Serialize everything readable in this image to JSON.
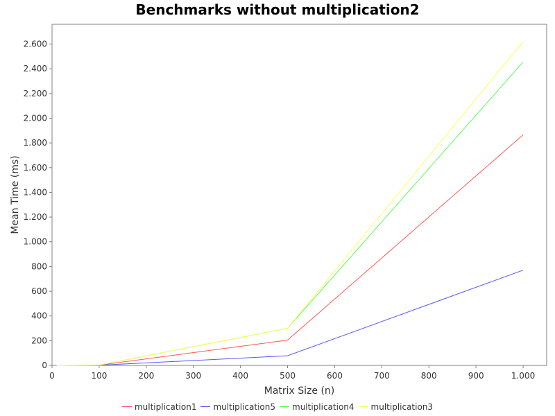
{
  "chart_data": {
    "type": "line",
    "title": "Benchmarks without multiplication2",
    "xlabel": "Matrix Size (n)",
    "ylabel": "Mean Time (ms)",
    "x": [
      10,
      100,
      500,
      1000
    ],
    "xlim": [
      0,
      1050
    ],
    "ylim": [
      0,
      2760
    ],
    "xticks": [
      0,
      100,
      200,
      300,
      400,
      500,
      600,
      700,
      800,
      900,
      1000
    ],
    "xtick_labels": [
      "0",
      "100",
      "200",
      "300",
      "400",
      "500",
      "600",
      "700",
      "800",
      "900",
      "1.000"
    ],
    "yticks": [
      0,
      200,
      400,
      600,
      800,
      1000,
      1200,
      1400,
      1600,
      1800,
      2000,
      2200,
      2400,
      2600
    ],
    "ytick_labels": [
      "0",
      "200",
      "400",
      "600",
      "800",
      "1.000",
      "1.200",
      "1.400",
      "1.600",
      "1.800",
      "2.000",
      "2.200",
      "2.400",
      "2.600"
    ],
    "grid": false,
    "legend_position": "bottom",
    "series": [
      {
        "name": "multiplication1",
        "color": "#ff5555",
        "values": [
          0,
          2,
          205,
          1865
        ]
      },
      {
        "name": "multiplication5",
        "color": "#5555ff",
        "values": [
          0,
          1,
          78,
          770
        ]
      },
      {
        "name": "multiplication4",
        "color": "#55ff55",
        "values": [
          0,
          3,
          300,
          2455
        ]
      },
      {
        "name": "multiplication3",
        "color": "#ffff55",
        "values": [
          0,
          3,
          300,
          2620
        ]
      }
    ]
  }
}
